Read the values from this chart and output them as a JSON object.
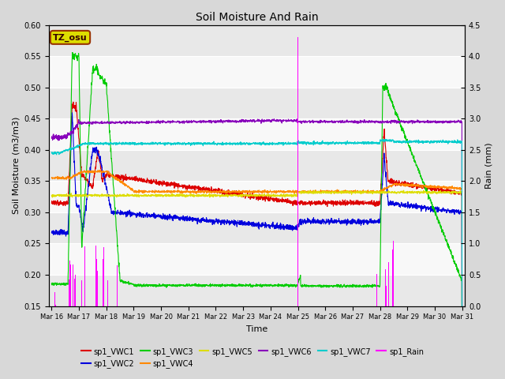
{
  "title": "Soil Moisture And Rain",
  "xlabel": "Time",
  "ylabel_left": "Soil Moisture (m3/m3)",
  "ylabel_right": "Rain (mm)",
  "station_label": "TZ_osu",
  "ylim_left": [
    0.15,
    0.6
  ],
  "ylim_right": [
    0.0,
    4.5
  ],
  "yticks_left": [
    0.15,
    0.2,
    0.25,
    0.3,
    0.35,
    0.4,
    0.45,
    0.5,
    0.55,
    0.6
  ],
  "yticks_right": [
    0.0,
    0.5,
    1.0,
    1.5,
    2.0,
    2.5,
    3.0,
    3.5,
    4.0,
    4.5
  ],
  "colors": {
    "VWC1": "#dd0000",
    "VWC2": "#0000dd",
    "VWC3": "#00cc00",
    "VWC4": "#ff8800",
    "VWC5": "#dddd00",
    "VWC6": "#8800bb",
    "VWC7": "#00cccc",
    "Rain": "#ff00ff"
  },
  "legend_labels": [
    "sp1_VWC1",
    "sp1_VWC2",
    "sp1_VWC3",
    "sp1_VWC4",
    "sp1_VWC5",
    "sp1_VWC6",
    "sp1_VWC7",
    "sp1_Rain"
  ],
  "xtick_labels": [
    "Mar 16",
    "Mar 17",
    "Mar 18",
    "Mar 19",
    "Mar 20",
    "Mar 21",
    "Mar 22",
    "Mar 23",
    "Mar 24",
    "Mar 25",
    "Mar 26",
    "Mar 27",
    "Mar 28",
    "Mar 29",
    "Mar 30",
    "Mar 31"
  ],
  "fig_bg": "#d8d8d8",
  "axes_bg": "#f0f0f0",
  "band_colors": [
    "#e8e8e8",
    "#f8f8f8"
  ],
  "station_box_fc": "#dddd00",
  "station_box_ec": "#993300",
  "n_points": 2160
}
